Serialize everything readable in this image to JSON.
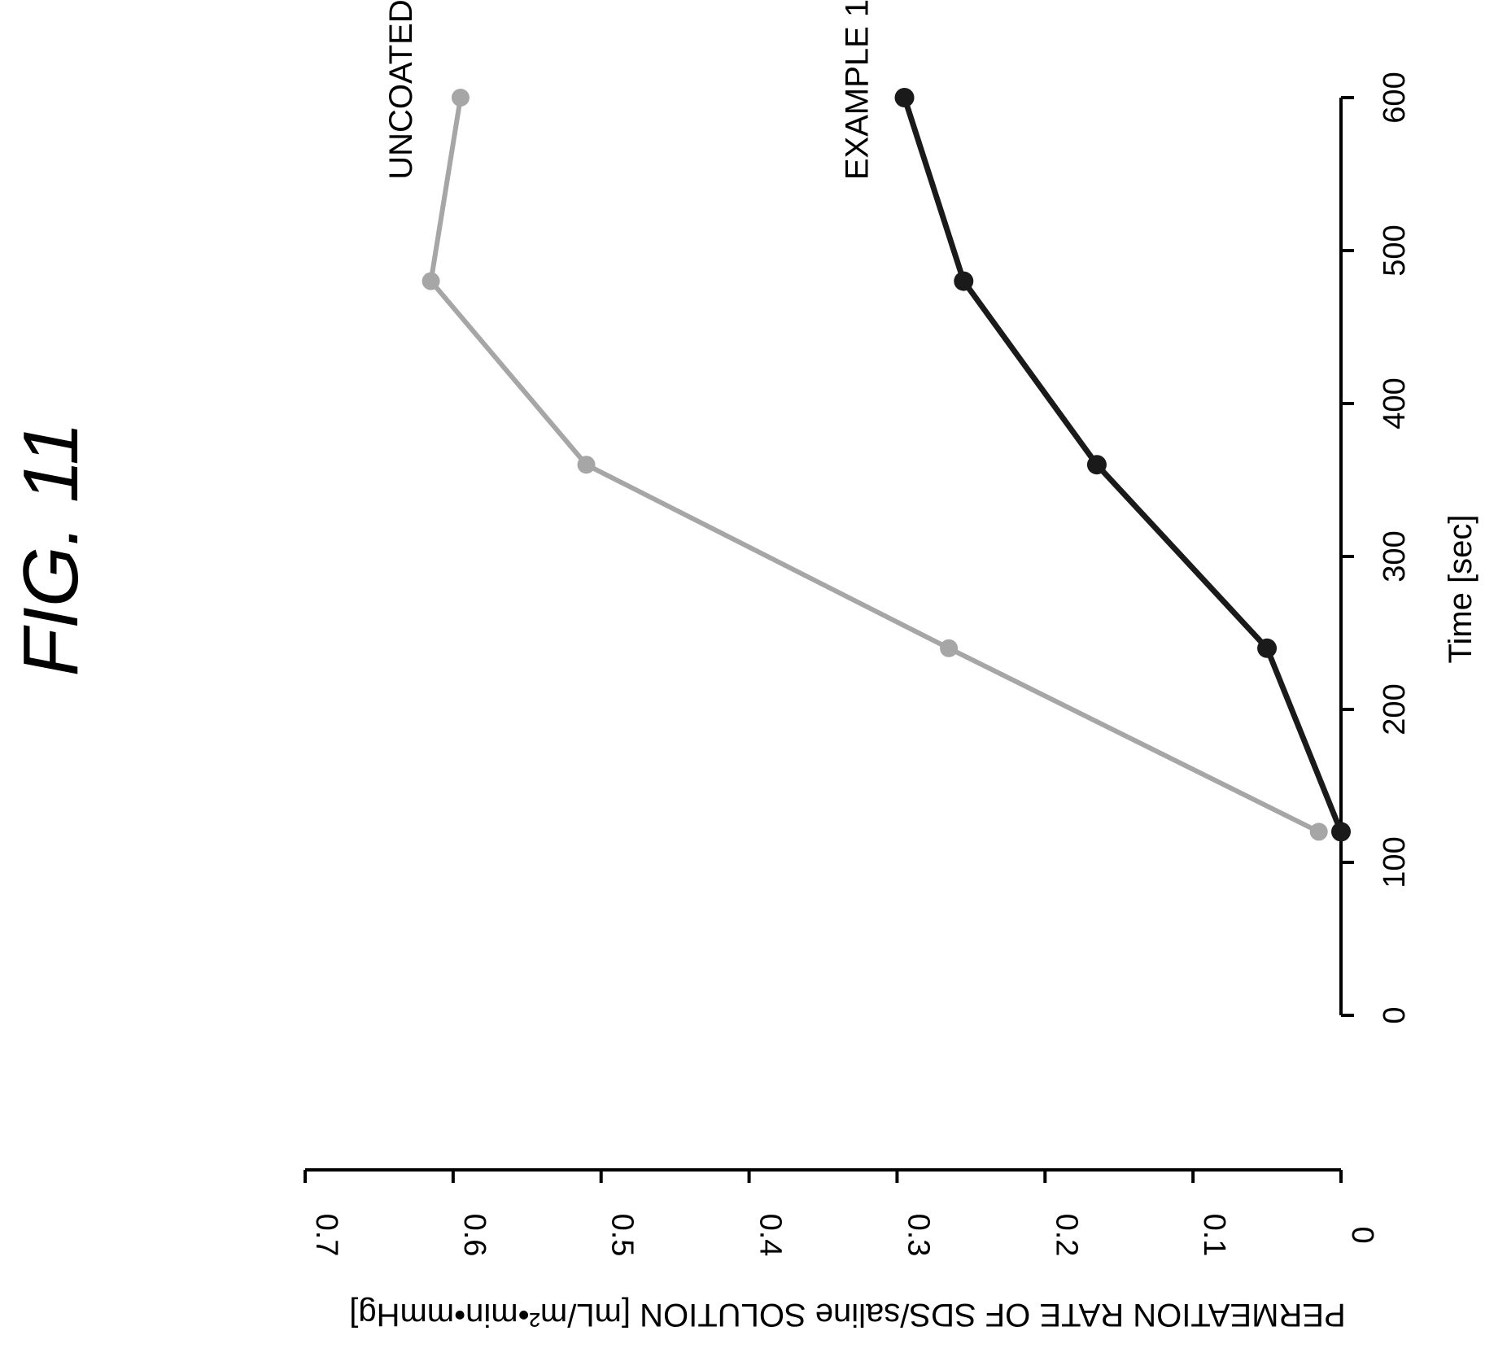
{
  "chart_data": {
    "type": "line",
    "title": "FIG. 11",
    "xlabel": "Time [sec]",
    "ylabel": "PERMEATION RATE OF SDS/saline SOLUTION [mL/m²•min•mmHg]",
    "xlim": [
      0,
      600
    ],
    "ylim": [
      0,
      0.7
    ],
    "x_ticks": [
      "0",
      "100",
      "200",
      "300",
      "400",
      "500",
      "600"
    ],
    "y_ticks": [
      "0",
      "0.1",
      "0.2",
      "0.3",
      "0.4",
      "0.5",
      "0.6",
      "0.7"
    ],
    "grid": false,
    "series": [
      {
        "name": "UNCOATED",
        "color": "#a6a6a6",
        "x": [
          120,
          240,
          360,
          480,
          600
        ],
        "y": [
          0.015,
          0.265,
          0.51,
          0.615,
          0.595
        ]
      },
      {
        "name": "EXAMPLE 1",
        "color": "#1a1a1a",
        "x": [
          120,
          240,
          360,
          480,
          600
        ],
        "y": [
          0.0,
          0.05,
          0.165,
          0.255,
          0.295
        ]
      }
    ]
  }
}
